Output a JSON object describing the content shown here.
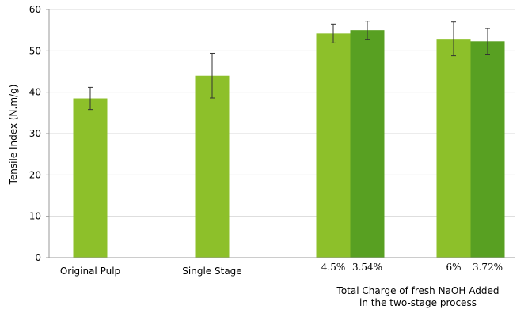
{
  "chart_data": {
    "type": "bar",
    "ylabel": "Tensile Index (N.m/g)",
    "ylim": [
      0,
      60
    ],
    "yticks": [
      0,
      10,
      20,
      30,
      40,
      50,
      60
    ],
    "grid": true,
    "colors": {
      "light": "#8dc02a",
      "dark": "#58a022",
      "grid": "#d9d9d9",
      "axis": "#999999"
    },
    "bars": [
      {
        "label": "Original Pulp",
        "value": 38.5,
        "err": 2.7,
        "color": "light"
      },
      {
        "label": "Single Stage",
        "value": 44.0,
        "err": 5.4,
        "color": "light"
      },
      {
        "label": "4.5%",
        "value": 54.2,
        "err": 2.3,
        "color": "light"
      },
      {
        "label": "3.54%",
        "value": 55.0,
        "err": 2.2,
        "color": "dark"
      },
      {
        "label": "6%",
        "value": 52.9,
        "err": 4.1,
        "color": "light"
      },
      {
        "label": "3.72%",
        "value": 52.3,
        "err": 3.1,
        "color": "dark"
      }
    ],
    "annotation": [
      "Total Charge of fresh NaOH Added",
      "in the two-stage process"
    ]
  }
}
